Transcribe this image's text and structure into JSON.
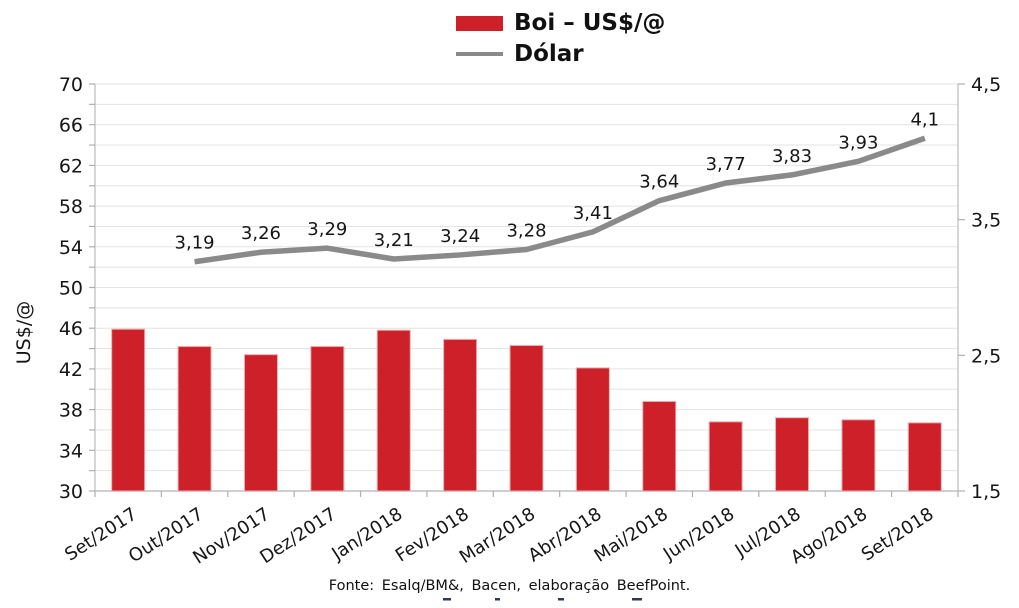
{
  "legend": {
    "items": [
      {
        "label": "Boi – US$/@",
        "swatch": "bar",
        "color": "#CD2028"
      },
      {
        "label": "Dólar",
        "swatch": "line",
        "color": "#8A8A8A"
      }
    ]
  },
  "footer": {
    "text": "Fonte: Esalq/BM&, Bacen, elaboração BeefPoint."
  },
  "chart_data": {
    "type": "bar",
    "subtype": "combo bar + line, dual y-axis",
    "title": "",
    "legend_position": "top-center",
    "categories": [
      "Set/2017",
      "Out/2017",
      "Nov/2017",
      "Dez/2017",
      "Jan/2018",
      "Fev/2018",
      "Mar/2018",
      "Abr/2018",
      "Mai/2018",
      "Jun/2018",
      "Jul/2018",
      "Ago/2018",
      "Set/2018"
    ],
    "series": [
      {
        "name": "Boi – US$/@",
        "type": "bar",
        "axis": "left",
        "color": "#CD2028",
        "values": [
          45.9,
          44.2,
          43.4,
          44.2,
          45.8,
          44.9,
          44.3,
          42.1,
          38.8,
          36.8,
          37.2,
          37.0,
          36.7
        ]
      },
      {
        "name": "Dólar",
        "type": "line",
        "axis": "right",
        "color": "#8A8A8A",
        "values": [
          null,
          3.19,
          3.26,
          3.29,
          3.21,
          3.24,
          3.28,
          3.41,
          3.64,
          3.77,
          3.83,
          3.93,
          4.1
        ],
        "point_labels": [
          null,
          "3,19",
          "3,26",
          "3,29",
          "3,21",
          "3,24",
          "3,28",
          "3,41",
          "3,64",
          "3,77",
          "3,83",
          "3,93",
          "4,1"
        ]
      }
    ],
    "left_axis": {
      "title": "US$/@",
      "min": 30,
      "max": 70,
      "tick_step": 4,
      "minor_step": 2,
      "tick_labels": [
        "30",
        "34",
        "38",
        "42",
        "46",
        "50",
        "54",
        "58",
        "62",
        "66",
        "70"
      ]
    },
    "right_axis": {
      "title": "",
      "min": 1.5,
      "max": 4.5,
      "tick_step": 1,
      "tick_labels": [
        "1,5",
        "2,5",
        "3,5",
        "4,5"
      ]
    },
    "grid": {
      "horizontal_every": 2,
      "color": "#E3E3E3"
    }
  }
}
